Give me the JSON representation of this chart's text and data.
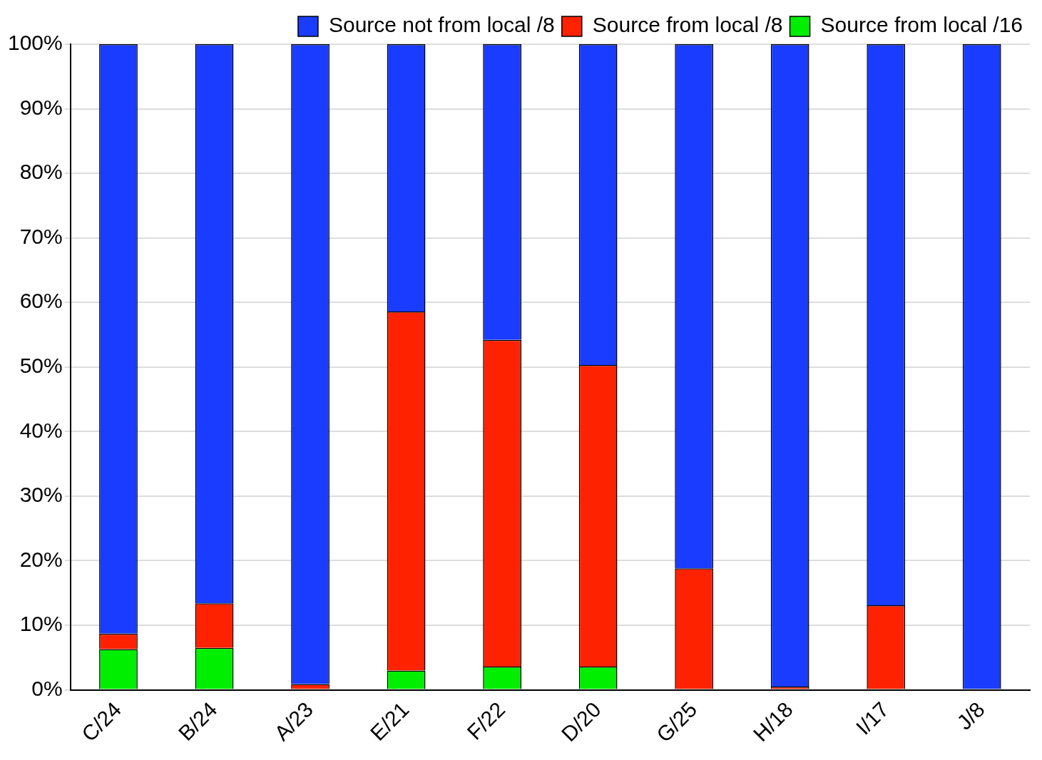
{
  "chart_data": {
    "type": "bar",
    "stacked": true,
    "categories": [
      "C/24",
      "B/24",
      "A/23",
      "E/21",
      "F/22",
      "D/20",
      "G/25",
      "H/18",
      "I/17",
      "J/8"
    ],
    "series": [
      {
        "name": "Source from local /16",
        "color": "#00ee00",
        "values": [
          6.3,
          6.5,
          0,
          3.0,
          3.6,
          3.6,
          0,
          0,
          0,
          0
        ]
      },
      {
        "name": "Source from local /8",
        "color": "#ff2200",
        "values": [
          2.4,
          6.9,
          0.9,
          55.6,
          50.6,
          46.7,
          18.8,
          0.5,
          13.1,
          0
        ]
      },
      {
        "name": "Source not from local /8",
        "color": "#1a3cff",
        "values": [
          91.3,
          86.6,
          99.1,
          41.4,
          45.8,
          49.7,
          81.2,
          99.5,
          86.9,
          100
        ]
      }
    ],
    "ylim": [
      0,
      100
    ],
    "yticks": [
      {
        "value": 0,
        "label": "0%"
      },
      {
        "value": 10,
        "label": "10%"
      },
      {
        "value": 20,
        "label": "20%"
      },
      {
        "value": 30,
        "label": "30%"
      },
      {
        "value": 40,
        "label": "40%"
      },
      {
        "value": 50,
        "label": "50%"
      },
      {
        "value": 60,
        "label": "60%"
      },
      {
        "value": 70,
        "label": "70%"
      },
      {
        "value": 80,
        "label": "80%"
      },
      {
        "value": 90,
        "label": "90%"
      },
      {
        "value": 100,
        "label": "100%"
      }
    ],
    "grid": "y",
    "legend": "top right"
  }
}
